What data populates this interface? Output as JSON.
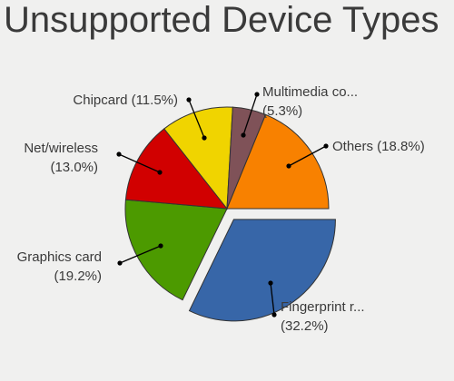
{
  "chart_data": {
    "type": "pie",
    "title": "Unsupported Device Types",
    "slices": [
      {
        "name": "Fingerprint r...",
        "label_pct": "(32.2%)",
        "value": 32.2,
        "color": "#3766a8",
        "exploded": true
      },
      {
        "name": "Graphics card",
        "label_pct": "(19.2%)",
        "value": 19.2,
        "color": "#4c9a00"
      },
      {
        "name": "Net/wireless",
        "label_pct": "(13.0%)",
        "value": 13.0,
        "color": "#d10000"
      },
      {
        "name": "Chipcard",
        "label_pct": "(11.5%)",
        "value": 11.5,
        "color": "#f0d400"
      },
      {
        "name": "Multimedia co...",
        "label_pct": "(5.3%)",
        "value": 5.3,
        "color": "#7f5258"
      },
      {
        "name": "Others",
        "label_pct": "(18.8%)",
        "value": 18.8,
        "color": "#f88100"
      }
    ]
  }
}
